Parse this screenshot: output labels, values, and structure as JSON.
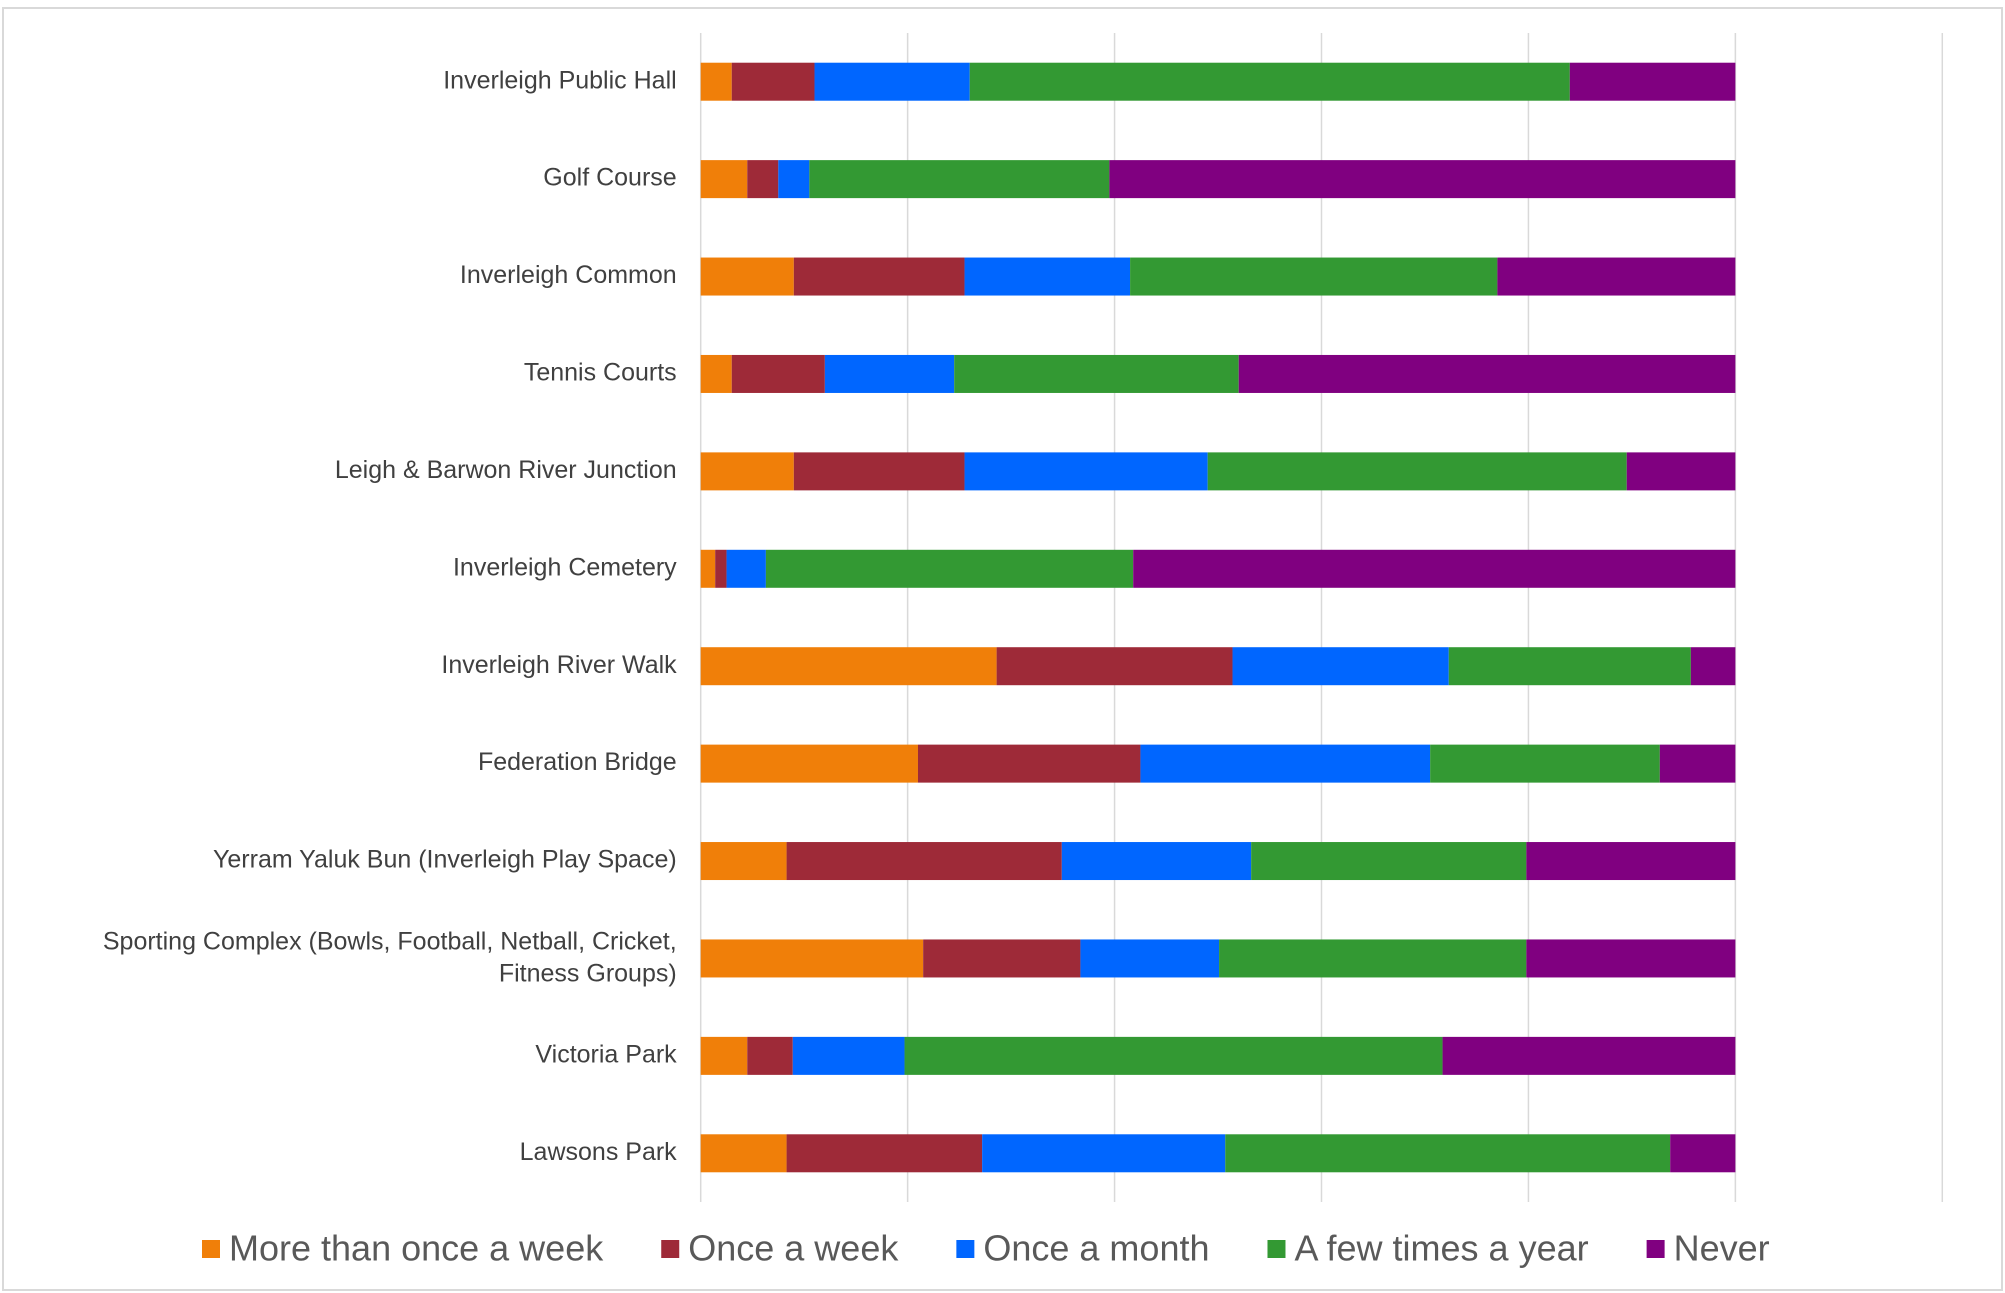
{
  "chart_data": {
    "type": "stacked_bar_horizontal",
    "categories": [
      "Inverleigh Public Hall",
      "Golf Course",
      "Inverleigh Common",
      "Tennis Courts",
      "Leigh & Barwon River Junction",
      "Inverleigh Cemetery",
      "Inverleigh River Walk",
      "Federation Bridge",
      "Yerram Yaluk Bun (Inverleigh Play Space)",
      "Sporting Complex (Bowls, Football, Netball, Cricket, Fitness Groups)",
      "Victoria Park",
      "Lawsons Park"
    ],
    "series": [
      {
        "name": "More than once a week",
        "color": "#f07f09",
        "values": [
          3,
          4.5,
          9,
          3,
          9,
          1.4,
          28.6,
          21,
          8.3,
          21.5,
          4.5,
          8.3
        ]
      },
      {
        "name": "Once a week",
        "color": "#9e2a38",
        "values": [
          8,
          3,
          16.5,
          9,
          16.5,
          1.1,
          22.8,
          21.5,
          26.6,
          15.2,
          4.4,
          18.9
        ]
      },
      {
        "name": "Once a month",
        "color": "#0066ff",
        "values": [
          15,
          3,
          16,
          12.5,
          23.5,
          3.8,
          20.9,
          28,
          18.3,
          13.4,
          10.8,
          23.5
        ]
      },
      {
        "name": "A few times a year",
        "color": "#339933",
        "values": [
          58,
          29,
          35.5,
          27.5,
          40.5,
          35.5,
          23.4,
          22.2,
          26.6,
          29.7,
          52,
          43
        ]
      },
      {
        "name": "Never",
        "color": "#800080",
        "values": [
          16,
          60.5,
          23,
          48,
          10.5,
          58.2,
          4.3,
          7.3,
          20.2,
          20.2,
          28.3,
          6.3
        ]
      }
    ],
    "xlim": [
      0,
      120
    ],
    "xticks": [
      0,
      20,
      40,
      60,
      80,
      100,
      120
    ],
    "grid": true,
    "legend": "bottom"
  }
}
